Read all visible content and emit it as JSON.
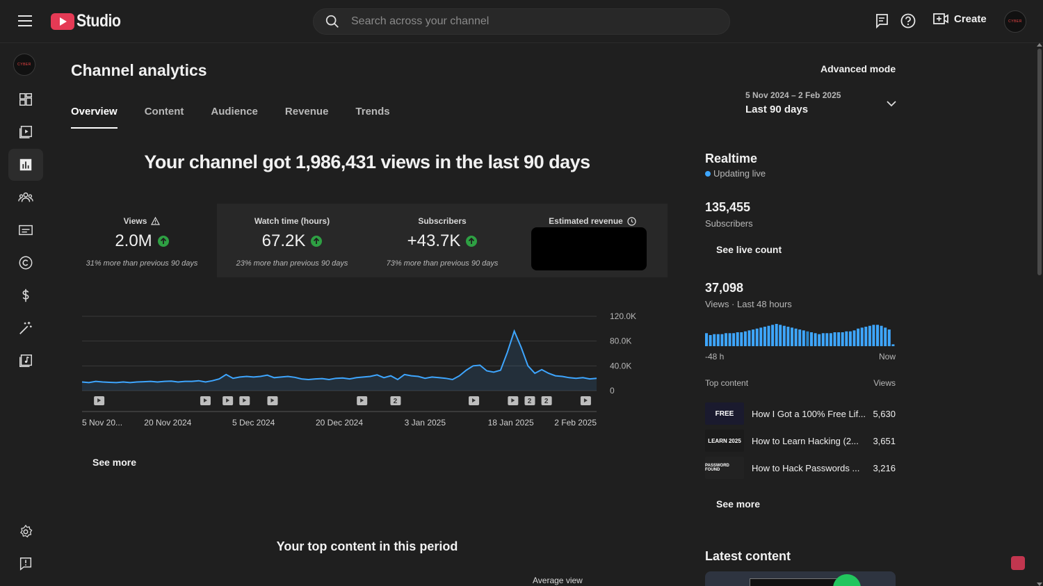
{
  "app": {
    "name": "Studio"
  },
  "search": {
    "placeholder": "Search across your channel"
  },
  "header": {
    "create_label": "Create",
    "avatar_text": "CYBER"
  },
  "sidebar": {
    "channel_avatar_text": "CYBER",
    "items": [
      {
        "name": "dashboard"
      },
      {
        "name": "content"
      },
      {
        "name": "analytics"
      },
      {
        "name": "community"
      },
      {
        "name": "subtitles"
      },
      {
        "name": "copyright"
      },
      {
        "name": "earn"
      },
      {
        "name": "customization"
      },
      {
        "name": "audio-library"
      },
      {
        "name": "settings"
      },
      {
        "name": "send-feedback"
      }
    ]
  },
  "page": {
    "title": "Channel analytics",
    "advanced_mode": "Advanced mode",
    "tabs": [
      "Overview",
      "Content",
      "Audience",
      "Revenue",
      "Trends"
    ],
    "date_range": {
      "sub": "5 Nov 2024 – 2 Feb 2025",
      "main": "Last 90 days"
    }
  },
  "overview": {
    "headline": "Your channel got 1,986,431 views in the last 90 days",
    "metrics": [
      {
        "label": "Views",
        "value": "2.0M",
        "note": "31% more than previous 90 days"
      },
      {
        "label": "Watch time (hours)",
        "value": "67.2K",
        "note": "23% more than previous 90 days"
      },
      {
        "label": "Subscribers",
        "value": "+43.7K",
        "note": "73% more than previous 90 days"
      },
      {
        "label": "Estimated revenue",
        "value": "",
        "note": ""
      }
    ],
    "see_more": "See more"
  },
  "chart_data": {
    "type": "area",
    "y_ticks": [
      "120.0K",
      "80.0K",
      "40.0K",
      "0"
    ],
    "ylim": [
      0,
      120000
    ],
    "x_tick_labels": [
      "5 Nov 20...",
      "20 Nov 2024",
      "5 Dec 2024",
      "20 Dec 2024",
      "3 Jan 2025",
      "18 Jan 2025",
      "2 Feb 2025"
    ],
    "values": [
      14000,
      13000,
      15000,
      14000,
      13500,
      13000,
      14000,
      13000,
      14000,
      14500,
      15000,
      14000,
      15000,
      15500,
      14000,
      15000,
      15000,
      16000,
      14000,
      16000,
      19000,
      26000,
      20000,
      22000,
      23000,
      22000,
      23000,
      25000,
      21000,
      22000,
      23000,
      21500,
      19000,
      18000,
      19000,
      19500,
      18000,
      20000,
      20500,
      19000,
      21000,
      22000,
      23000,
      25500,
      21000,
      24000,
      18000,
      26000,
      24000,
      23000,
      20000,
      22000,
      21000,
      20000,
      18000,
      24000,
      33000,
      40000,
      41000,
      32000,
      30000,
      33000,
      62000,
      96000,
      70000,
      40000,
      28000,
      34000,
      28000,
      24000,
      23000,
      21000,
      20000,
      21000,
      19000,
      20000
    ],
    "markers": [
      {
        "type": "play",
        "x_index": 3
      },
      {
        "type": "play",
        "x_index": 22
      },
      {
        "type": "play",
        "x_index": 26
      },
      {
        "type": "play",
        "x_index": 29
      },
      {
        "type": "play",
        "x_index": 34
      },
      {
        "type": "play",
        "x_index": 50
      },
      {
        "type": "count",
        "label": "2",
        "x_index": 56
      },
      {
        "type": "play",
        "x_index": 70
      },
      {
        "type": "play",
        "x_index": 77
      },
      {
        "type": "count",
        "label": "2",
        "x_index": 80
      },
      {
        "type": "count",
        "label": "2",
        "x_index": 83
      },
      {
        "type": "play",
        "x_index": 90
      }
    ]
  },
  "realtime": {
    "title": "Realtime",
    "live_text": "Updating live",
    "subscribers_value": "135,455",
    "subscribers_label": "Subscribers",
    "see_live_count": "See live count",
    "views_value": "37,098",
    "views_label": "Views · Last 48 hours",
    "axis_start": "-48 h",
    "axis_end": "Now",
    "bars": [
      14,
      12,
      13,
      13,
      13,
      14,
      14,
      14,
      15,
      15,
      16,
      17,
      18,
      19,
      20,
      21,
      22,
      23,
      24,
      23,
      22,
      21,
      20,
      19,
      18,
      17,
      16,
      15,
      14,
      13,
      14,
      14,
      14,
      15,
      15,
      15,
      16,
      16,
      17,
      19,
      20,
      21,
      22,
      23,
      23,
      22,
      20,
      18,
      2
    ],
    "highlight_bar_index": 26,
    "top_content_header": "Top content",
    "views_header": "Views",
    "top_content": [
      {
        "title": "How I Got a 100% Free Lif...",
        "views": "5,630",
        "thumb_text": "FREE",
        "thumb_bg": "#1a1a2e"
      },
      {
        "title": "How to Learn Hacking (2...",
        "views": "3,651",
        "thumb_text": "LEARN 2025",
        "thumb_bg": "#1b1b1b"
      },
      {
        "title": "How to Hack Passwords ...",
        "views": "3,216",
        "thumb_text": "PASSWORD FOUND",
        "thumb_bg": "#222"
      }
    ],
    "see_more": "See more"
  },
  "bottom": {
    "top_content_title": "Your top content in this period",
    "avg_view_label": "Average view",
    "latest_content": "Latest content"
  },
  "colors": {
    "accent": "#3ea6ff",
    "brand": "#e53a55",
    "up": "#2ea043"
  }
}
